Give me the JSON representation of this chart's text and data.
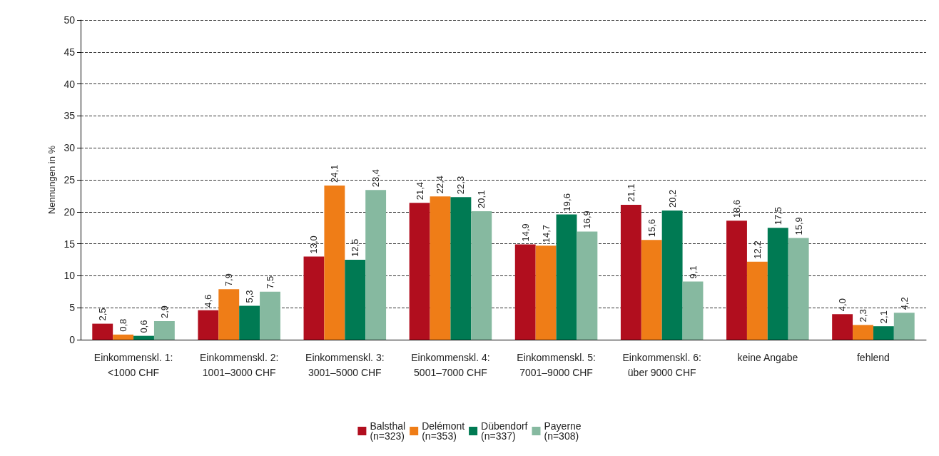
{
  "chart_data": {
    "type": "bar",
    "ylabel": "Nennungen in %",
    "categories": [
      "Einkommenskl. 1:\n<1000 CHF",
      "Einkommenskl. 2:\n1001–3000 CHF",
      "Einkommenskl. 3:\n3001–5000 CHF",
      "Einkommenskl. 4:\n5001–7000 CHF",
      "Einkommenskl. 5:\n7001–9000 CHF",
      "Einkommenskl. 6:\nüber 9000 CHF",
      "keine Angabe",
      "fehlend"
    ],
    "series": [
      {
        "name": "Balsthal\n(n=323)",
        "color": "#b10e1e",
        "values": [
          2.5,
          4.6,
          13.0,
          21.4,
          14.9,
          21.1,
          18.6,
          4.0
        ],
        "value_labels": [
          "2,5",
          "4,6",
          "13,0",
          "21,4",
          "14,9",
          "21,1",
          "18,6",
          "4,0"
        ]
      },
      {
        "name": "Delémont\n(n=353)",
        "color": "#ef7d17",
        "values": [
          0.8,
          7.9,
          24.1,
          22.4,
          14.7,
          15.6,
          12.2,
          2.3
        ],
        "value_labels": [
          "0,8",
          "7,9",
          "24,1",
          "22,4",
          "14,7",
          "15,6",
          "12,2",
          "2,3"
        ]
      },
      {
        "name": "Dübendorf\n(n=337)",
        "color": "#007a53",
        "values": [
          0.6,
          5.3,
          12.5,
          22.3,
          19.6,
          20.2,
          17.5,
          2.1
        ],
        "value_labels": [
          "0,6",
          "5,3",
          "12,5",
          "22,3",
          "19,6",
          "20,2",
          "17,5",
          "2,1"
        ]
      },
      {
        "name": "Payerne\n(n=308)",
        "color": "#86b9a0",
        "values": [
          2.9,
          7.5,
          23.4,
          20.1,
          16.9,
          9.1,
          15.9,
          4.2
        ],
        "value_labels": [
          "2,9",
          "7,5",
          "23,4",
          "20,1",
          "16,9",
          "9,1",
          "15,9",
          "4,2"
        ]
      }
    ],
    "ylim": [
      0,
      50
    ],
    "yticks": [
      0,
      5,
      10,
      15,
      20,
      25,
      30,
      35,
      40,
      45,
      50
    ],
    "grid": "y",
    "legend": "bottom"
  }
}
